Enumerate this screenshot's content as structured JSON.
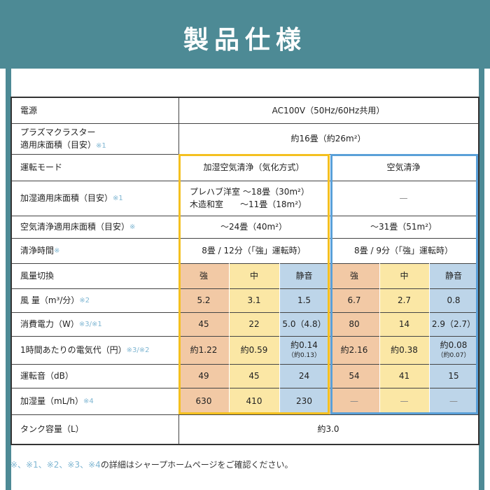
{
  "title": "製品仕様",
  "rows": {
    "power": {
      "label": "電源",
      "value": "AC100V（50Hz/60Hz共用）"
    },
    "plasma": {
      "label_line1": "プラズマクラスター",
      "label_line2": "適用床面積（目安）",
      "mark": "※1",
      "value": "約16畳（約26m²）"
    },
    "mode": {
      "label": "運転モード",
      "humid": "加湿空気清浄（気化方式）",
      "clean": "空気清浄"
    },
    "humid_area": {
      "label": "加湿適用床面積（目安）",
      "mark": "※1",
      "line1": "プレハブ洋室 〜18畳（30m²）",
      "line2": "木造和室　　〜11畳（18m²）",
      "clean": "—"
    },
    "clean_area": {
      "label": "空気清浄適用床面積（目安）",
      "mark": "※",
      "humid": "〜24畳（40m²）",
      "clean": "〜31畳（51m²）"
    },
    "clean_time": {
      "label": "清浄時間",
      "mark": "※",
      "humid": "8畳 / 12分（「強」運転時）",
      "clean": "8畳 / 9分（「強」運転時）"
    },
    "airflow_switch": {
      "label": "風量切換",
      "values": [
        "強",
        "中",
        "静音",
        "強",
        "中",
        "静音"
      ]
    },
    "airflow": {
      "label": "風 量（m³/分）",
      "mark": "※2",
      "values": [
        "5.2",
        "3.1",
        "1.5",
        "6.7",
        "2.7",
        "0.8"
      ]
    },
    "power_use": {
      "label": "消費電力（W）",
      "mark": "※3/※1",
      "values": [
        "45",
        "22",
        "5.0（4.8）",
        "80",
        "14",
        "2.9（2.7）"
      ]
    },
    "cost": {
      "label": "1時間あたりの電気代（円）",
      "mark": "※3/※2",
      "values": [
        "約1.22",
        "約0.59",
        "約0.14",
        "約2.16",
        "約0.38",
        "約0.08"
      ],
      "subs": [
        "",
        "",
        "（約0.13）",
        "",
        "",
        "（約0.07）"
      ]
    },
    "noise": {
      "label": "運転音（dB）",
      "values": [
        "49",
        "45",
        "24",
        "54",
        "41",
        "15"
      ]
    },
    "humid_amount": {
      "label": "加湿量（mL/h）",
      "mark": "※4",
      "values": [
        "630",
        "410",
        "230",
        "—",
        "—",
        "—"
      ]
    },
    "tank": {
      "label": "タンク容量（L）",
      "value": "約3.0"
    }
  },
  "footnote": {
    "marks": "※、※1、※2、※3、※4",
    "text": "の詳細はシャープホームページをご確認ください。"
  },
  "colors": {
    "teal": "#4d8a95",
    "orange": "#f2c9a5",
    "yellow": "#fbe7a5",
    "blue": "#bdd5e9",
    "humid_border": "#f4c020",
    "clean_border": "#5aa0d8"
  }
}
